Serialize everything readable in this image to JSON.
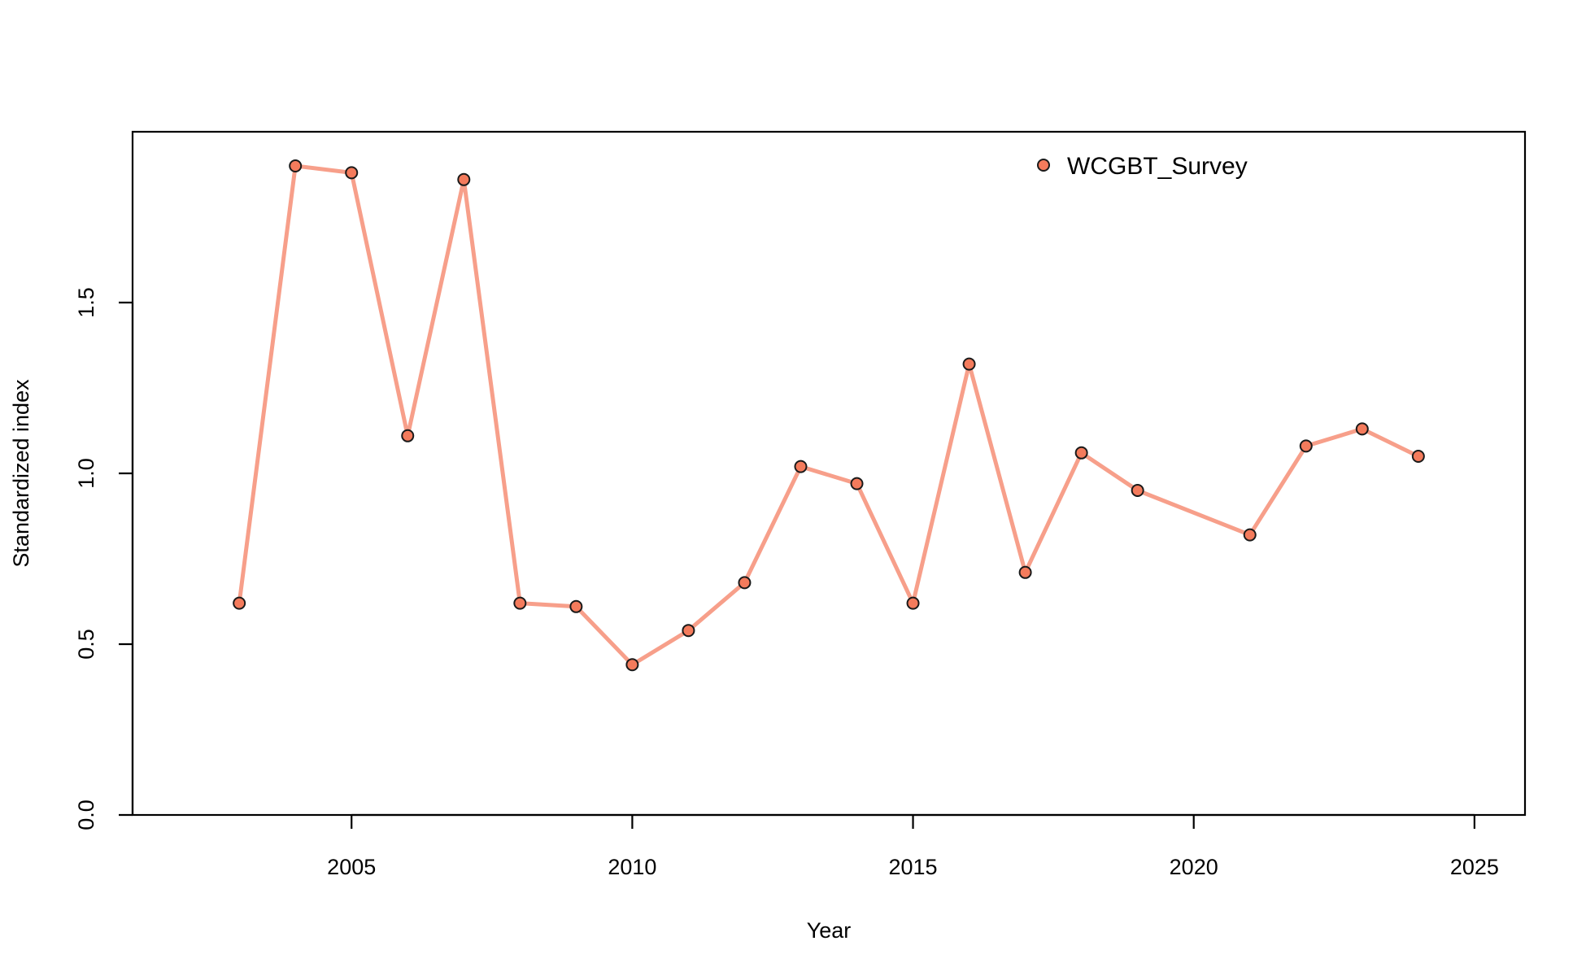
{
  "chart_data": {
    "type": "line",
    "xlabel": "Year",
    "ylabel": "Standardized index",
    "xlim": [
      2001.1,
      2025.9
    ],
    "ylim": [
      0,
      2.0
    ],
    "x_ticks": [
      2005,
      2010,
      2015,
      2020,
      2025
    ],
    "y_ticks": [
      0.0,
      0.5,
      1.0,
      1.5
    ],
    "y_tick_labels": [
      "0.0",
      "0.5",
      "1.0",
      "1.5"
    ],
    "grid": false,
    "legend_position": "top-right",
    "series": [
      {
        "name": "WCGBT_Survey",
        "line_color": "#F79F8A",
        "point_color": "#F47B5C",
        "x": [
          2003,
          2004,
          2005,
          2006,
          2007,
          2008,
          2009,
          2010,
          2011,
          2012,
          2013,
          2014,
          2015,
          2016,
          2017,
          2018,
          2019,
          2021,
          2022,
          2023,
          2024
        ],
        "y": [
          0.62,
          1.9,
          1.88,
          1.11,
          1.86,
          0.62,
          0.61,
          0.44,
          0.54,
          0.68,
          1.02,
          0.97,
          0.62,
          1.32,
          0.71,
          1.06,
          0.95,
          0.82,
          1.08,
          1.13,
          1.05
        ]
      }
    ]
  }
}
